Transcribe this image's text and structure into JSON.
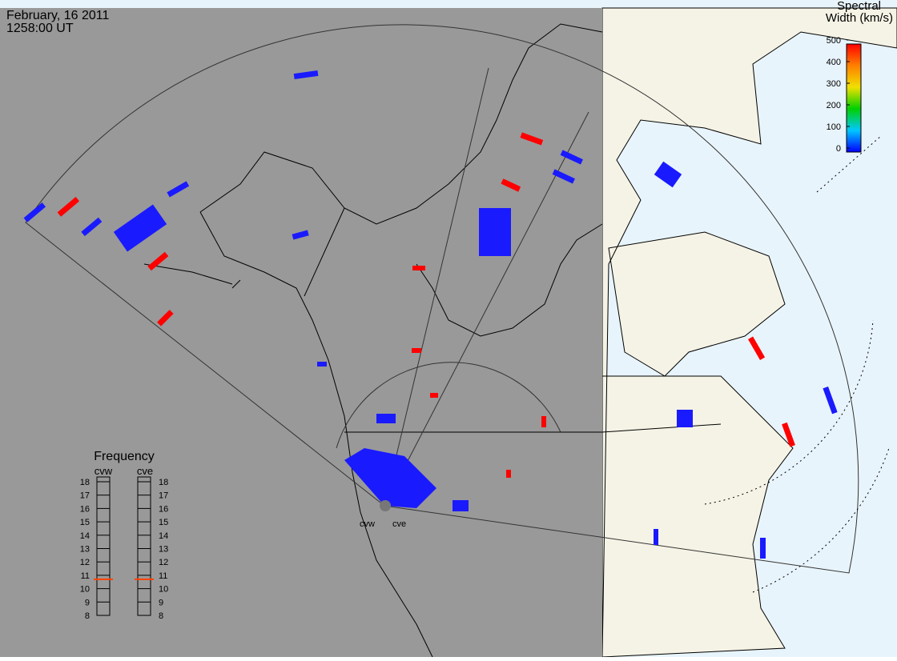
{
  "header": {
    "date": "February, 16 2011",
    "time": "1258:00 UT"
  },
  "colorbar": {
    "title": [
      "Spectral",
      "Width (km/s)"
    ],
    "range": [
      0,
      500
    ],
    "ticks": [
      0,
      100,
      200,
      300,
      400,
      500
    ]
  },
  "frequency": {
    "title": "Frequency",
    "range": [
      8,
      18
    ],
    "ticks": [
      8,
      9,
      10,
      11,
      12,
      13,
      14,
      15,
      16,
      17,
      18
    ],
    "radars": [
      {
        "name": "cvw",
        "value": 10.7
      },
      {
        "name": "cve",
        "value": 10.7
      }
    ]
  },
  "stations": [
    "cvw",
    "cve"
  ]
}
